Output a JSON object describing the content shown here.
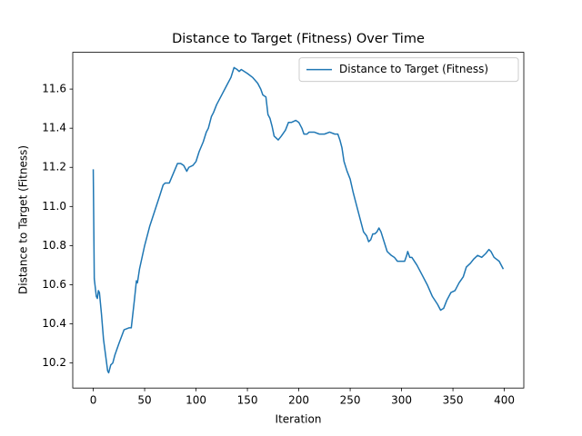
{
  "chart_data": {
    "type": "line",
    "title": "Distance to Target (Fitness) Over Time",
    "x_label": "Iteration",
    "y_label": "Distance to Target (Fitness)",
    "legend": "upper right",
    "x": [
      0,
      1,
      3,
      4,
      5,
      6,
      8,
      10,
      12,
      14,
      15,
      17,
      19,
      21,
      25,
      30,
      35,
      37,
      40,
      42,
      43,
      45,
      50,
      55,
      60,
      65,
      68,
      70,
      74,
      78,
      82,
      85,
      88,
      90,
      91,
      93,
      97,
      100,
      103,
      107,
      110,
      112,
      115,
      117,
      120,
      125,
      130,
      134,
      137,
      140,
      142,
      144,
      150,
      155,
      160,
      163,
      165,
      168,
      170,
      172,
      174,
      176,
      178,
      180,
      183,
      187,
      190,
      193,
      197,
      200,
      203,
      205,
      208,
      210,
      215,
      220,
      225,
      230,
      235,
      238,
      240,
      242,
      244,
      247,
      250,
      253,
      256,
      260,
      263,
      266,
      268,
      270,
      272,
      274,
      276,
      278,
      280,
      283,
      286,
      290,
      293,
      296,
      300,
      303,
      305,
      306,
      308,
      310,
      315,
      320,
      325,
      330,
      335,
      338,
      341,
      344,
      348,
      352,
      356,
      360,
      363,
      367,
      370,
      374,
      378,
      382,
      385,
      387,
      390,
      395,
      399
    ],
    "series": [
      {
        "name": "Distance to Target (Fitness)",
        "color": "#1f77b4",
        "values": [
          11.19,
          10.63,
          10.54,
          10.53,
          10.57,
          10.56,
          10.45,
          10.32,
          10.24,
          10.16,
          10.15,
          10.19,
          10.2,
          10.24,
          10.3,
          10.37,
          10.38,
          10.38,
          10.52,
          10.62,
          10.61,
          10.68,
          10.8,
          10.9,
          10.98,
          11.06,
          11.11,
          11.12,
          11.12,
          11.17,
          11.22,
          11.22,
          11.21,
          11.19,
          11.18,
          11.2,
          11.21,
          11.23,
          11.28,
          11.33,
          11.38,
          11.4,
          11.46,
          11.48,
          11.52,
          11.57,
          11.62,
          11.66,
          11.71,
          11.7,
          11.69,
          11.7,
          11.68,
          11.66,
          11.63,
          11.6,
          11.57,
          11.56,
          11.47,
          11.45,
          11.41,
          11.36,
          11.35,
          11.34,
          11.36,
          11.39,
          11.43,
          11.43,
          11.44,
          11.43,
          11.4,
          11.37,
          11.37,
          11.38,
          11.38,
          11.37,
          11.37,
          11.38,
          11.37,
          11.37,
          11.34,
          11.3,
          11.23,
          11.18,
          11.14,
          11.07,
          11.01,
          10.93,
          10.87,
          10.85,
          10.82,
          10.83,
          10.86,
          10.86,
          10.87,
          10.89,
          10.87,
          10.82,
          10.77,
          10.75,
          10.74,
          10.72,
          10.72,
          10.72,
          10.75,
          10.77,
          10.74,
          10.74,
          10.7,
          10.65,
          10.6,
          10.54,
          10.5,
          10.47,
          10.48,
          10.52,
          10.56,
          10.57,
          10.61,
          10.64,
          10.69,
          10.71,
          10.73,
          10.75,
          10.74,
          10.76,
          10.78,
          10.77,
          10.74,
          10.72,
          10.68
        ]
      }
    ],
    "xlim": [
      -19.95,
      418.95
    ],
    "xticks": [
      0,
      50,
      100,
      150,
      200,
      250,
      300,
      350,
      400
    ],
    "ylim": [
      10.072,
      11.788
    ],
    "yticks": [
      10.2,
      10.4,
      10.6,
      10.8,
      {
        "value": 11,
        "label": "11.0"
      },
      11.2,
      11.4,
      11.6
    ]
  }
}
